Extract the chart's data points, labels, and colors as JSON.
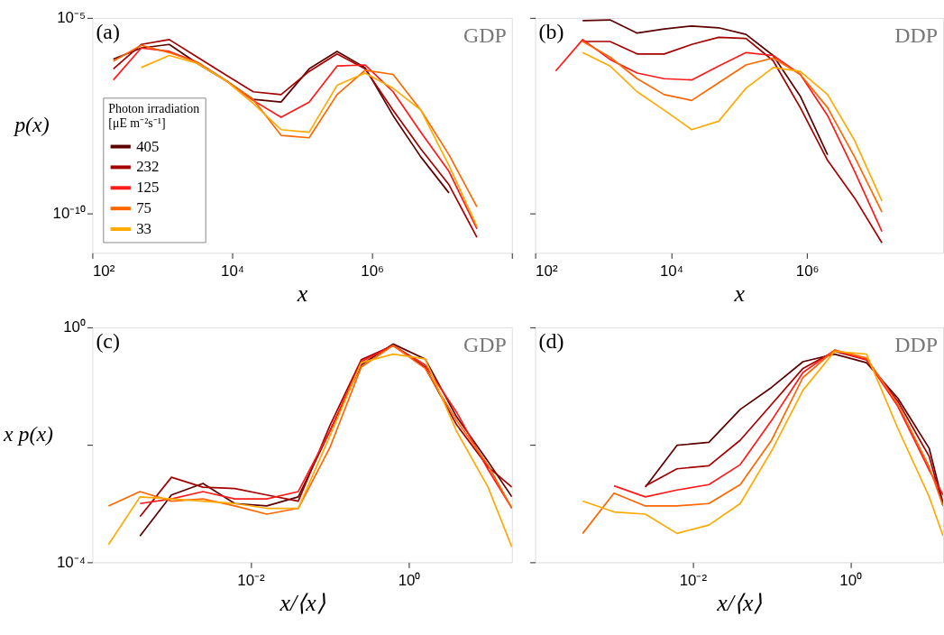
{
  "chart_data": [
    {
      "type": "line",
      "log": "xy",
      "grid": false,
      "legend": "bottom left",
      "legend_title": "Photon irradiation\n[μE m⁻²s⁻¹]",
      "xlabel": "x",
      "ylabel": "p(x)",
      "annotations": [
        "(a)",
        "GDP"
      ],
      "xlim": [
        100,
        100000000
      ],
      "ylim": [
        1e-11,
        1e-05
      ],
      "xticks": [
        {
          "value": 100,
          "label": "10²"
        },
        {
          "value": 10000,
          "label": "10⁴"
        },
        {
          "value": 1000000,
          "label": "10⁶"
        },
        {
          "value": 100000000,
          "label": null
        }
      ],
      "yticks": [
        {
          "value": 1e-05,
          "label": "10⁻⁵"
        },
        {
          "value": 1e-10,
          "label": "10⁻¹⁰"
        }
      ],
      "x": [
        200,
        500,
        1260,
        3160,
        7900,
        20000,
        50000,
        126000,
        316000,
        794000,
        2000000,
        5000000,
        12600000,
        31600000
      ],
      "series": [
        {
          "name": "405",
          "color": "#5c0000",
          "values": [
            8.9e-07,
            1.7e-06,
            2.1e-06,
            6.9e-07,
            2.6e-07,
            8.3e-08,
            7.1e-08,
            5e-07,
            1.4e-06,
            5.4e-07,
            3.2e-08,
            2.8e-09,
            3.4e-10,
            null
          ]
        },
        {
          "name": "232",
          "color": "#a50000",
          "values": [
            5e-07,
            2.1e-06,
            2.8e-06,
            1e-06,
            3.6e-07,
            1.3e-07,
            1.1e-07,
            4.3e-07,
            1.2e-06,
            5e-07,
            4.4e-08,
            4.5e-09,
            5.5e-10,
            2.5e-11
          ]
        },
        {
          "name": "125",
          "color": "#ff1a1a",
          "values": [
            2.6e-07,
            1.7e-06,
            1.4e-06,
            7.4e-07,
            2.6e-07,
            7.8e-08,
            2.9e-08,
            7.1e-08,
            5.9e-07,
            6.3e-07,
            1.3e-07,
            1.2e-08,
            1.2e-09,
            4.1e-11
          ]
        },
        {
          "name": "75",
          "color": "#ff6600",
          "values": [
            7.9e-07,
            2e-06,
            1.3e-06,
            7.4e-07,
            2.6e-07,
            8.3e-08,
            1e-08,
            8.7e-09,
            1.1e-07,
            4.6e-07,
            3.6e-07,
            4.4e-08,
            3.2e-09,
            1.5e-10
          ]
        },
        {
          "name": "33",
          "color": "#ffaa00",
          "values": [
            null,
            5.4e-07,
            1.1e-06,
            6.9e-07,
            2.6e-07,
            6.6e-08,
            1.4e-08,
            1.2e-08,
            1.9e-07,
            3.9e-07,
            1.6e-07,
            4.4e-08,
            1.7e-09,
            4.8e-11
          ]
        }
      ]
    },
    {
      "type": "line",
      "log": "xy",
      "grid": false,
      "tick_labels": "x",
      "xlabel": "x",
      "annotations": [
        "(b)",
        "DDP"
      ],
      "xlim": [
        100,
        100000000
      ],
      "ylim": [
        1e-11,
        1e-05
      ],
      "xticks": [
        {
          "value": 100,
          "label": "10²"
        },
        {
          "value": 10000,
          "label": "10⁴"
        },
        {
          "value": 1000000,
          "label": "10⁶"
        }
      ],
      "yticks": [
        {
          "value": 1e-05,
          "label": null
        },
        {
          "value": 1e-10,
          "label": null
        }
      ],
      "x": [
        200,
        500,
        1260,
        3160,
        7900,
        20000,
        50000,
        126000,
        316000,
        794000,
        2000000,
        5000000,
        12600000
      ],
      "series": [
        {
          "color": "#5c0000",
          "values": [
            null,
            8.5e-06,
            8.9e-06,
            4.1e-06,
            5.2e-06,
            6.2e-06,
            5.6e-06,
            3.8e-06,
            1.1e-06,
            1e-07,
            3.2e-09,
            null,
            null
          ]
        },
        {
          "color": "#a50000",
          "values": [
            null,
            2.5e-06,
            2.5e-06,
            1.2e-06,
            1.2e-06,
            2.1e-06,
            3.2e-06,
            3e-06,
            8.1e-07,
            5.1e-08,
            2.3e-09,
            2.5e-10,
            1.8e-11
          ]
        },
        {
          "color": "#ff1a1a",
          "values": [
            4.4e-07,
            2.8e-06,
            8.7e-07,
            3.9e-07,
            2.8e-07,
            2.6e-07,
            5.9e-07,
            1.3e-06,
            1.1e-06,
            3.6e-07,
            3.2e-08,
            1.2e-09,
            3.5e-11
          ]
        },
        {
          "color": "#ff6600",
          "values": [
            null,
            2.5e-06,
            1e-06,
            2.8e-07,
            1.1e-07,
            7.8e-08,
            2.2e-07,
            6.3e-07,
            9.5e-07,
            3.6e-07,
            5.1e-08,
            2.8e-09,
            1.1e-10
          ]
        },
        {
          "color": "#ffaa00",
          "values": [
            null,
            1.3e-06,
            5.9e-07,
            1.3e-07,
            4.4e-08,
            1.4e-08,
            2.3e-08,
            1.6e-07,
            5.4e-07,
            4.3e-07,
            1.1e-07,
            7.4e-09,
            2.1e-10
          ]
        }
      ]
    },
    {
      "type": "line",
      "log": "xy",
      "grid": false,
      "xlabel": "x/⟨x⟩",
      "ylabel": "x p(x)",
      "annotations": [
        "(c)",
        "GDP"
      ],
      "xlim": [
        0.0001,
        20
      ],
      "ylim": [
        0.0001,
        1
      ],
      "xticks": [
        {
          "value": 0.01,
          "label": "10⁻²"
        },
        {
          "value": 1,
          "label": "10⁰"
        }
      ],
      "yticks": [
        {
          "value": 1,
          "label": "10⁰"
        },
        {
          "value": 0.01,
          "label": null
        },
        {
          "value": 0.0001,
          "label": "10⁻⁴"
        }
      ],
      "x": [
        0.00016,
        0.0004,
        0.001,
        0.0025,
        0.0063,
        0.016,
        0.04,
        0.1,
        0.25,
        0.63,
        1.6,
        4,
        10,
        20
      ],
      "series": [
        {
          "color": "#5c0000",
          "values": [
            null,
            0.00028,
            0.0014,
            0.0022,
            0.001,
            0.00091,
            0.0013,
            0.017,
            0.23,
            0.52,
            0.29,
            0.03,
            0.0052,
            0.0013
          ]
        },
        {
          "color": "#a50000",
          "values": [
            null,
            0.0006,
            0.0028,
            0.0019,
            0.0018,
            0.0014,
            0.0011,
            0.021,
            0.28,
            0.49,
            0.21,
            0.022,
            0.0042,
            0.0019
          ]
        },
        {
          "color": "#ff1a1a",
          "values": [
            null,
            0.001,
            0.0012,
            0.0016,
            0.0012,
            0.0012,
            0.0016,
            0.017,
            0.26,
            0.49,
            0.23,
            0.036,
            0.0038,
            0.00083
          ]
        },
        {
          "color": "#ff6600",
          "values": [
            0.00091,
            0.0016,
            0.0011,
            0.0012,
            0.00091,
            0.00066,
            0.00083,
            0.0089,
            0.21,
            0.49,
            0.2,
            0.026,
            0.0045,
            0.00083
          ]
        },
        {
          "color": "#ffaa00",
          "values": [
            0.0002,
            0.0013,
            0.0012,
            0.0011,
            0.001,
            0.00083,
            0.00083,
            0.014,
            0.25,
            0.35,
            0.29,
            0.017,
            0.0019,
            0.00018
          ]
        }
      ]
    },
    {
      "type": "line",
      "log": "xy",
      "grid": false,
      "tick_labels": "x",
      "xlabel": "x/⟨x⟩",
      "annotations": [
        "(d)",
        "DDP"
      ],
      "xlim": [
        0.0001,
        15
      ],
      "ylim": [
        0.0001,
        1
      ],
      "xticks": [
        {
          "value": 0.01,
          "label": "10⁻²"
        },
        {
          "value": 1,
          "label": "10⁰"
        }
      ],
      "yticks": [
        {
          "value": 1,
          "label": null
        },
        {
          "value": 0.01,
          "label": null
        },
        {
          "value": 0.0001,
          "label": null
        }
      ],
      "x": [
        0.0004,
        0.001,
        0.0025,
        0.0063,
        0.016,
        0.04,
        0.1,
        0.25,
        0.63,
        1.6,
        4,
        10,
        15
      ],
      "series": [
        {
          "color": "#5c0000",
          "values": [
            null,
            null,
            0.0019,
            0.0098,
            0.011,
            0.04,
            0.095,
            0.26,
            0.35,
            0.25,
            0.062,
            0.0087,
            0.001
          ]
        },
        {
          "color": "#a50000",
          "values": [
            null,
            null,
            0.002,
            0.0039,
            0.0044,
            0.012,
            0.049,
            0.2,
            0.39,
            0.28,
            0.055,
            0.0063,
            0.00091
          ]
        },
        {
          "color": "#ff1a1a",
          "values": [
            null,
            0.002,
            0.0013,
            0.0017,
            0.0021,
            0.0046,
            0.026,
            0.17,
            0.41,
            0.28,
            0.045,
            0.0037,
            0.0014
          ]
        },
        {
          "color": "#ff6600",
          "values": [
            0.00031,
            0.0015,
            0.00091,
            0.00091,
            0.001,
            0.0021,
            0.012,
            0.14,
            0.41,
            0.3,
            0.049,
            0.0042,
            0.00091
          ]
        },
        {
          "color": "#ffaa00",
          "values": [
            0.0011,
            0.00072,
            0.00066,
            0.00031,
            0.00043,
            0.001,
            0.0079,
            0.085,
            0.39,
            0.35,
            0.019,
            0.0013,
            0.00028
          ]
        }
      ]
    }
  ]
}
